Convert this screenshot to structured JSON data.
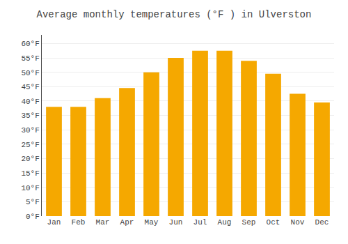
{
  "chart_data": {
    "type": "bar",
    "title": "Average monthly temperatures (°F ) in Ulverston",
    "categories": [
      "Jan",
      "Feb",
      "Mar",
      "Apr",
      "May",
      "Jun",
      "Jul",
      "Aug",
      "Sep",
      "Oct",
      "Nov",
      "Dec"
    ],
    "values": [
      38,
      38,
      41,
      44.5,
      50,
      55,
      57.5,
      57.5,
      54,
      49.5,
      42.5,
      39.5
    ],
    "color": "#F5A800",
    "ylim": [
      0,
      63
    ],
    "yticks": [
      {
        "value": 0,
        "label": "0°F"
      },
      {
        "value": 5,
        "label": "5°F"
      },
      {
        "value": 10,
        "label": "10°F"
      },
      {
        "value": 15,
        "label": "15°F"
      },
      {
        "value": 20,
        "label": "20°F"
      },
      {
        "value": 25,
        "label": "25°F"
      },
      {
        "value": 30,
        "label": "30°F"
      },
      {
        "value": 35,
        "label": "35°F"
      },
      {
        "value": 40,
        "label": "40°F"
      },
      {
        "value": 45,
        "label": "45°F"
      },
      {
        "value": 50,
        "label": "50°F"
      },
      {
        "value": 55,
        "label": "55°F"
      },
      {
        "value": 60,
        "label": "60°F"
      }
    ],
    "grid": true
  }
}
